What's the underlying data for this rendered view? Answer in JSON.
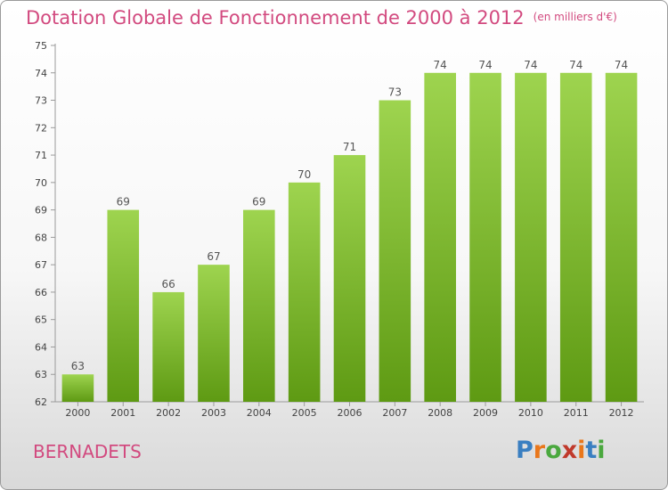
{
  "title": "Dotation Globale de Fonctionnement de 2000 à 2012",
  "subtitle": "(en milliers d'€)",
  "city": "BERNADETS",
  "logo": {
    "text": "Proxiti",
    "colors": [
      "#3a7fc1",
      "#e9771b",
      "#4aa83e",
      "#c0392b",
      "#e9771b",
      "#3a7fc1",
      "#4aa83e"
    ]
  },
  "colors": {
    "bar_top": "#9ed44f",
    "bar_bottom": "#5e9a13",
    "accent": "#d24a7f"
  },
  "chart_data": {
    "type": "bar",
    "categories": [
      "2000",
      "2001",
      "2002",
      "2003",
      "2004",
      "2005",
      "2006",
      "2007",
      "2008",
      "2009",
      "2010",
      "2011",
      "2012"
    ],
    "values": [
      63,
      69,
      66,
      67,
      69,
      70,
      71,
      73,
      74,
      74,
      74,
      74,
      74
    ],
    "data_labels": [
      "63",
      "69",
      "66",
      "67",
      "69",
      "70",
      "71",
      "73",
      "74",
      "74",
      "74",
      "74",
      "74"
    ],
    "ylim": [
      62,
      75
    ],
    "yticks": [
      "62",
      "63",
      "64",
      "65",
      "66",
      "67",
      "68",
      "69",
      "70",
      "71",
      "72",
      "73",
      "74",
      "75"
    ],
    "grid": false,
    "xlabel": "",
    "ylabel": ""
  }
}
